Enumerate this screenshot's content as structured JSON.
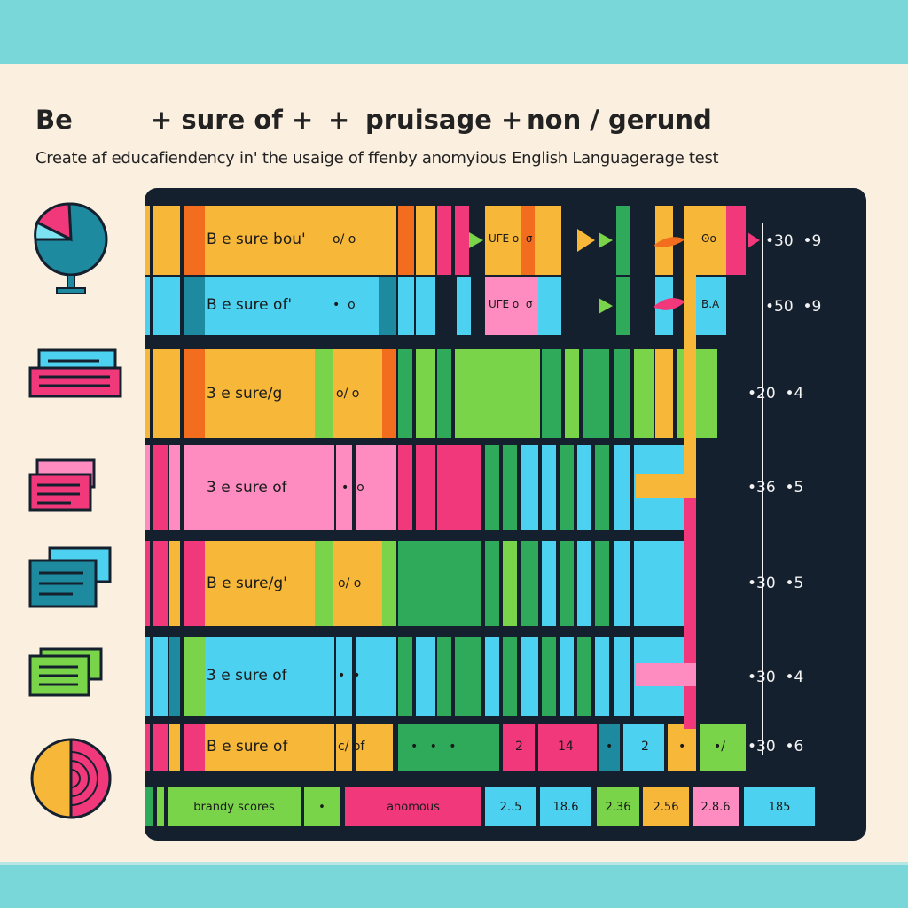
{
  "header": {
    "title_parts": [
      "Be",
      "+ sure of +",
      "+",
      "pruisage +",
      "non / gerund"
    ],
    "subtitle": "Create af educafiendency in' the usaige of ffenby anomyious English Languagerage test"
  },
  "icons": [
    "pie-chart-icon",
    "stacked-cards-icon",
    "card-icon",
    "card-icon",
    "card-icon",
    "record-icon"
  ],
  "rows": [
    {
      "label": "B e sure bou'",
      "glyph": "o/ o",
      "mid": "UΓE o  σ",
      "end": "ʘo",
      "value": "•30  •9"
    },
    {
      "label": "B e sure of'",
      "glyph": "•  o",
      "mid": "UΓE o  σ",
      "end": "B.A",
      "value": "•50  •9"
    },
    {
      "label": "3 e sure/g",
      "glyph": "o/ o",
      "value": "•20  •4"
    },
    {
      "label": "3 e sure of",
      "glyph": "•  o",
      "value": "•36  •5"
    },
    {
      "label": "B e sure/g'",
      "glyph": "o/ o",
      "value": "•30  •5"
    },
    {
      "label": "3 e sure of",
      "glyph": "•  •",
      "value": "•30  •4"
    },
    {
      "label": "B e sure of",
      "glyph": "c/ of",
      "cells": [
        "•   •   •",
        "2",
        "14",
        "•",
        "2",
        "•",
        "•/"
      ],
      "value": "•30  •6"
    }
  ],
  "footer": {
    "cells": [
      "brandy scores",
      "•",
      "anomous",
      "2..5",
      "18.6",
      "2.36",
      "2.56",
      "2.8.6",
      "185"
    ]
  }
}
